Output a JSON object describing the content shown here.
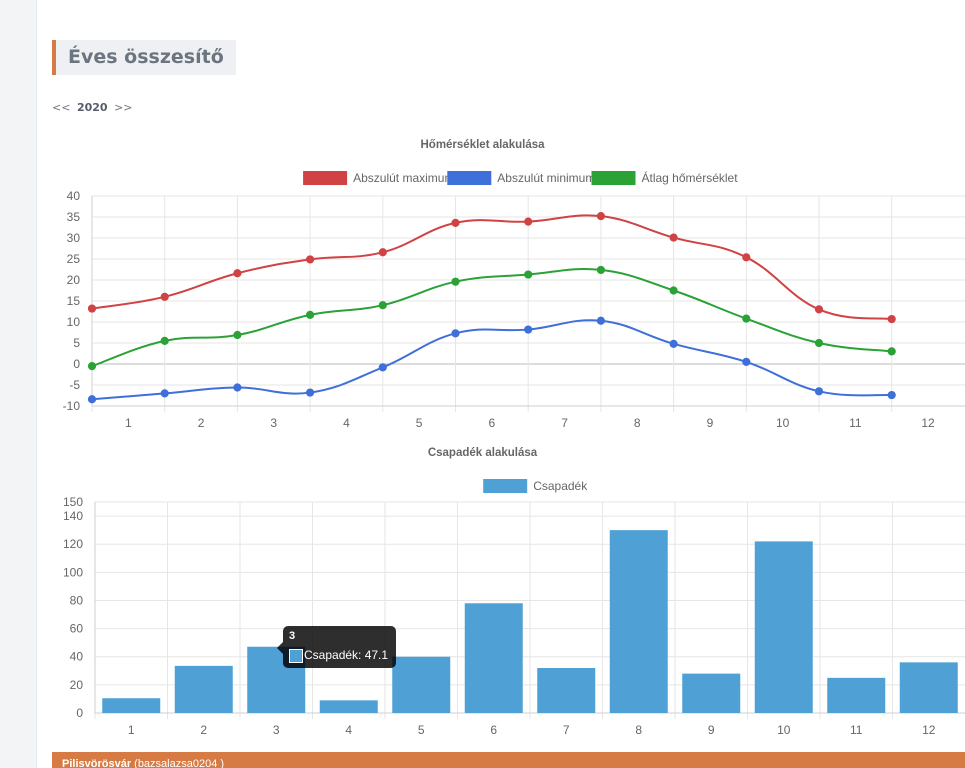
{
  "page": {
    "section_title": "Éves összesítő",
    "nav_prev": "<<",
    "year": "2020",
    "nav_next": ">>"
  },
  "footer": {
    "station": "Pilisvörösvár",
    "user": "(bazsalazsa0204 )"
  },
  "chart_data": [
    {
      "type": "line",
      "title": "Hőmérséklet alakulása",
      "categories": [
        "1",
        "2",
        "3",
        "4",
        "5",
        "6",
        "7",
        "8",
        "9",
        "10",
        "11",
        "12"
      ],
      "ylim": [
        -10,
        40
      ],
      "yticks": [
        -10,
        -5,
        0,
        5,
        10,
        15,
        20,
        25,
        30,
        35,
        40
      ],
      "grid": true,
      "legend": "top",
      "series": [
        {
          "name": "Abszulút maximum",
          "color": "#d04243",
          "values": [
            13.2,
            16.0,
            21.6,
            24.9,
            26.6,
            33.6,
            33.9,
            35.2,
            30.1,
            25.4,
            13.0,
            10.7
          ]
        },
        {
          "name": "Abszulút minimum",
          "color": "#3f6fd8",
          "values": [
            -8.4,
            -7.0,
            -5.6,
            -6.8,
            -0.8,
            7.3,
            8.2,
            10.3,
            4.8,
            0.5,
            -6.5,
            -7.4
          ]
        },
        {
          "name": "Átlag hőmérséklet",
          "color": "#2aa236",
          "values": [
            -0.5,
            5.5,
            6.9,
            11.7,
            14.0,
            19.6,
            21.3,
            22.4,
            17.5,
            10.8,
            5.0,
            3.0
          ]
        }
      ]
    },
    {
      "type": "bar",
      "title": "Csapadék alakulása",
      "categories": [
        "1",
        "2",
        "3",
        "4",
        "5",
        "6",
        "7",
        "8",
        "9",
        "10",
        "11",
        "12"
      ],
      "ylim": [
        0,
        150
      ],
      "yticks": [
        0,
        20,
        40,
        60,
        80,
        100,
        120,
        140,
        150
      ],
      "grid": true,
      "legend": "top",
      "series": [
        {
          "name": "Csapadék",
          "color": "#4fa1d5",
          "values": [
            10.5,
            33.5,
            47.1,
            9.0,
            40.0,
            78.0,
            32.0,
            130.0,
            28.0,
            122.0,
            25.0,
            36.0
          ]
        }
      ],
      "tooltip": {
        "title": "3",
        "label": "Csapadék: 47.1"
      }
    }
  ]
}
